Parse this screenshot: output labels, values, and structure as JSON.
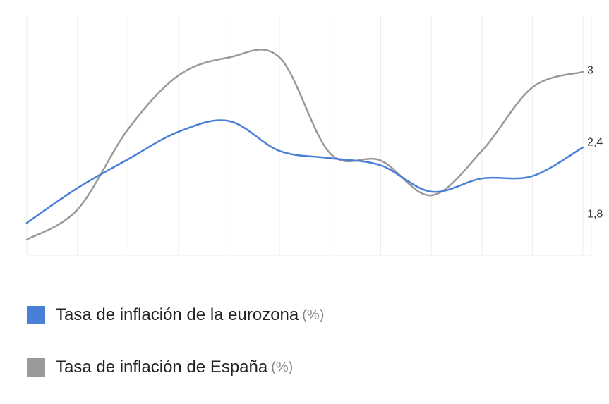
{
  "chart_data": {
    "type": "line",
    "x": [
      1,
      2,
      3,
      4,
      5,
      6,
      7,
      8,
      9,
      10,
      11,
      12
    ],
    "ylim": [
      1.45,
      3.45
    ],
    "y_ticks": [
      {
        "value": 1.8,
        "label": "1,8"
      },
      {
        "value": 2.4,
        "label": "2,4"
      },
      {
        "value": 3.0,
        "label": "3"
      }
    ],
    "grid": "vertical",
    "legend_position": "bottom-left",
    "series": [
      {
        "name": "Tasa de inflación de la eurozona",
        "unit": "(%)",
        "color": "#4a7fd8",
        "values": [
          1.72,
          2.01,
          2.25,
          2.48,
          2.57,
          2.32,
          2.26,
          2.2,
          1.98,
          2.09,
          2.11,
          2.35
        ]
      },
      {
        "name": "Tasa de inflación de España",
        "unit": "(%)",
        "color": "#999999",
        "values": [
          1.58,
          1.83,
          2.5,
          2.95,
          3.1,
          3.1,
          2.3,
          2.24,
          1.95,
          2.32,
          2.85,
          2.98
        ]
      }
    ]
  }
}
